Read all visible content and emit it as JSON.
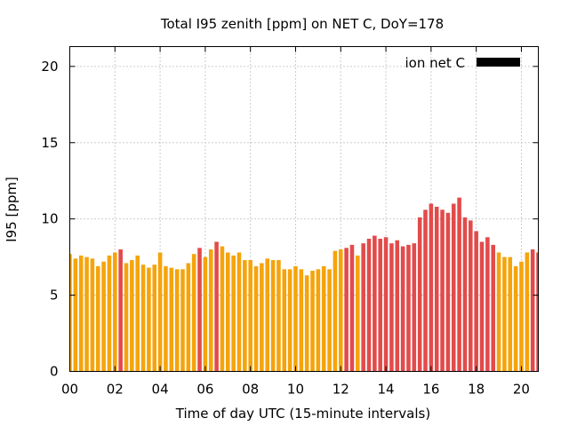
{
  "chart_data": {
    "type": "bar",
    "title": "Total I95 zenith [ppm] on NET C, DoY=178",
    "xlabel": "Time of day UTC (15-minute intervals)",
    "ylabel": "I95 [ppm]",
    "xlim": [
      0,
      20.75
    ],
    "ylim": [
      0,
      21.3
    ],
    "x_ticks": [
      "00",
      "02",
      "04",
      "06",
      "08",
      "10",
      "12",
      "14",
      "16",
      "18",
      "20"
    ],
    "y_ticks": [
      "0",
      "5",
      "10",
      "15",
      "20"
    ],
    "grid": true,
    "legend_position": "top-right",
    "series": [
      {
        "name": "ion net C",
        "color": "#000000"
      }
    ],
    "colors": {
      "low": "#f5a40c",
      "high": "#e24b4b"
    },
    "interval_hours": 0.25,
    "values": [
      7.7,
      7.4,
      7.6,
      7.5,
      7.4,
      6.9,
      7.2,
      7.6,
      7.8,
      8.0,
      7.1,
      7.3,
      7.6,
      7.0,
      6.8,
      7.0,
      7.8,
      6.9,
      6.8,
      6.7,
      6.7,
      7.1,
      7.7,
      8.1,
      7.5,
      8.0,
      8.5,
      8.2,
      7.8,
      7.6,
      7.8,
      7.3,
      7.3,
      6.9,
      7.1,
      7.4,
      7.3,
      7.3,
      6.7,
      6.7,
      6.9,
      6.7,
      6.3,
      6.6,
      6.7,
      6.9,
      6.7,
      7.9,
      8.0,
      8.1,
      8.3,
      7.6,
      8.4,
      8.7,
      8.9,
      8.7,
      8.8,
      8.4,
      8.6,
      8.2,
      8.3,
      8.4,
      10.1,
      10.6,
      11.0,
      10.8,
      10.6,
      10.4,
      11.0,
      11.4,
      10.1,
      9.9,
      9.2,
      8.5,
      8.8,
      8.3,
      7.8,
      7.5,
      7.5,
      6.9,
      7.2,
      7.8,
      8.0,
      7.8
    ],
    "flags": [
      "l",
      "l",
      "l",
      "l",
      "l",
      "l",
      "l",
      "l",
      "l",
      "h",
      "l",
      "l",
      "l",
      "l",
      "l",
      "l",
      "l",
      "l",
      "l",
      "l",
      "l",
      "l",
      "l",
      "h",
      "l",
      "l",
      "h",
      "l",
      "l",
      "l",
      "l",
      "l",
      "l",
      "l",
      "l",
      "l",
      "l",
      "l",
      "l",
      "l",
      "l",
      "l",
      "l",
      "l",
      "l",
      "l",
      "l",
      "l",
      "l",
      "h",
      "h",
      "l",
      "h",
      "h",
      "h",
      "h",
      "h",
      "h",
      "h",
      "h",
      "h",
      "h",
      "h",
      "h",
      "h",
      "h",
      "h",
      "h",
      "h",
      "h",
      "h",
      "h",
      "h",
      "h",
      "h",
      "h",
      "l",
      "l",
      "l",
      "l",
      "l",
      "l",
      "h",
      "h"
    ]
  }
}
